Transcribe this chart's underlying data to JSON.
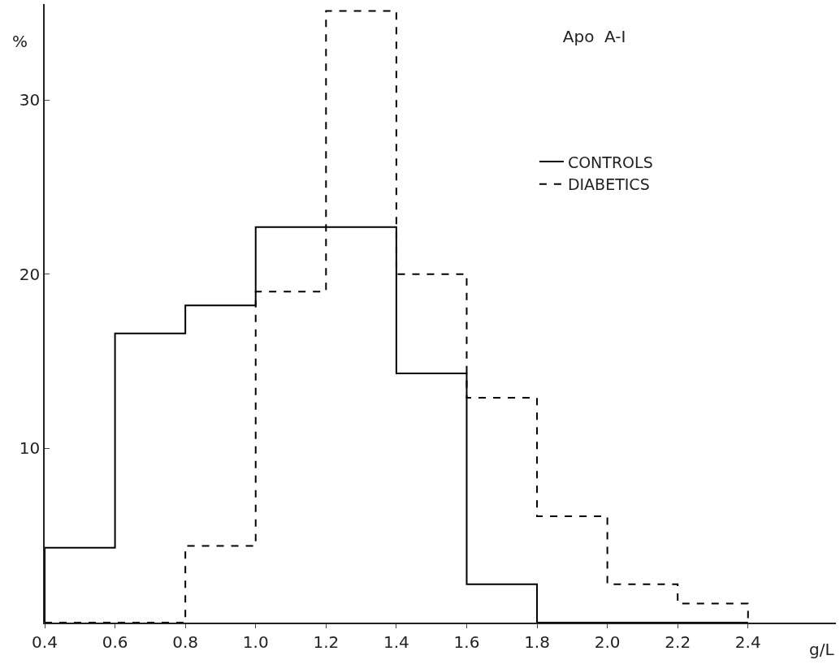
{
  "chart_data": {
    "type": "histogram",
    "title": "Apo  A-I",
    "xlabel": "g/L",
    "ylabel": "%",
    "bins": [
      0.4,
      0.6,
      0.8,
      1.0,
      1.2,
      1.4,
      1.6,
      1.8,
      2.0,
      2.2,
      2.4
    ],
    "series": [
      {
        "name": "CONTROLS",
        "color": "#000000",
        "line_style": "solid",
        "values": [
          4.3,
          16.6,
          18.2,
          22.7,
          22.7,
          14.3,
          2.2,
          0,
          0,
          0
        ]
      },
      {
        "name": "DIABETICS",
        "color": "#000000",
        "line_style": "dashed",
        "values": [
          0,
          0,
          4.4,
          19.0,
          35.1,
          20.0,
          12.9,
          6.1,
          2.2,
          1.1
        ]
      }
    ],
    "xlim": [
      0.4,
      2.65
    ],
    "xticks": [
      {
        "value": 0.4,
        "label": "0.4"
      },
      {
        "value": 0.6,
        "label": "0.6"
      },
      {
        "value": 0.8,
        "label": "0.8"
      },
      {
        "value": 1.0,
        "label": "1.0"
      },
      {
        "value": 1.2,
        "label": "1.2"
      },
      {
        "value": 1.4,
        "label": "1.4"
      },
      {
        "value": 1.6,
        "label": "1.6"
      },
      {
        "value": 1.8,
        "label": "1.8"
      },
      {
        "value": 2.0,
        "label": "2.0"
      },
      {
        "value": 2.2,
        "label": "2.2"
      },
      {
        "value": 2.4,
        "label": "2.4"
      }
    ],
    "ylim": [
      0,
      35.5
    ],
    "yticks": [
      10,
      20,
      30
    ],
    "grid": false,
    "legend": "top right"
  }
}
